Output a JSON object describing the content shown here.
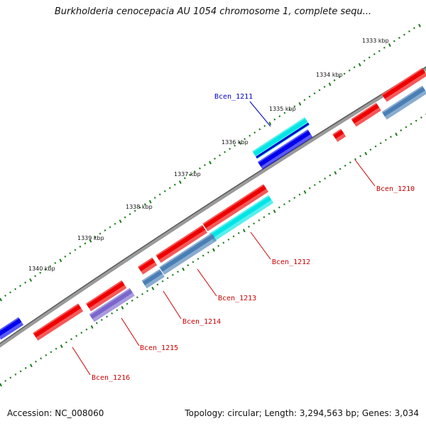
{
  "title": "Burkholderia cenocepacia AU 1054 chromosome 1, complete sequ...",
  "footer": {
    "accession": "Accession: NC_008060",
    "topology": "Topology: circular; Length: 3,294,563 bp; Genes: 3,034"
  },
  "ruler": [
    "1333 kbp",
    "1334 kbp",
    "1335 kbp",
    "1336 kbp",
    "1337 kbp",
    "1338 kbp",
    "1339 kbp",
    "1340 kbp"
  ],
  "gene_labels": [
    {
      "text": "Bcen_1211",
      "color": "#0000cc"
    },
    {
      "text": "Bcen_1210",
      "color": "#cc0000"
    },
    {
      "text": "Bcen_1212",
      "color": "#cc0000"
    },
    {
      "text": "Bcen_1213",
      "color": "#cc0000"
    },
    {
      "text": "Bcen_1214",
      "color": "#cc0000"
    },
    {
      "text": "Bcen_1215",
      "color": "#cc0000"
    },
    {
      "text": "Bcen_1216",
      "color": "#cc0000"
    }
  ],
  "colors": {
    "backbone": "#7a7a7a",
    "ruler_tick": "#1a7a1a",
    "forward_cds": "#ee0000",
    "reverse_cds": "#4a7fb5",
    "highlight_cds": "#00e5e5",
    "dark_blue_cds": "#0000ee",
    "purple_cds": "#7a66cc"
  }
}
